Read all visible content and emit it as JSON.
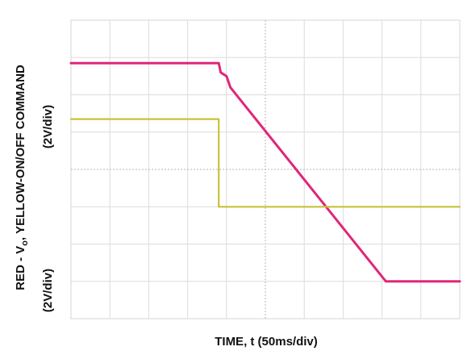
{
  "chart_data": {
    "type": "line",
    "title": "",
    "xlabel": "TIME, t (50ms/div)",
    "ylabel": {
      "line1_left": "RED - V",
      "line1_sub": "o",
      "line1_right": ",  YELLOW-ON/OFF COMMAND",
      "line2_left": "(2V/div)",
      "line2_right": "(2V/div)"
    },
    "x_divisions": 10,
    "y_divisions": 8,
    "xlim": [
      0,
      10
    ],
    "ylim": [
      0,
      8
    ],
    "grid": true,
    "series": [
      {
        "color": "#e0267a",
        "x": [
          0,
          3.8,
          3.85,
          4.0,
          4.1,
          8.1,
          10
        ],
        "y": [
          6.85,
          6.85,
          6.6,
          6.5,
          6.2,
          1.0,
          1.0
        ]
      },
      {
        "color": "#c8c23a",
        "x": [
          0,
          3.8,
          3.8,
          10
        ],
        "y": [
          5.35,
          5.35,
          3.0,
          3.0
        ]
      }
    ]
  }
}
